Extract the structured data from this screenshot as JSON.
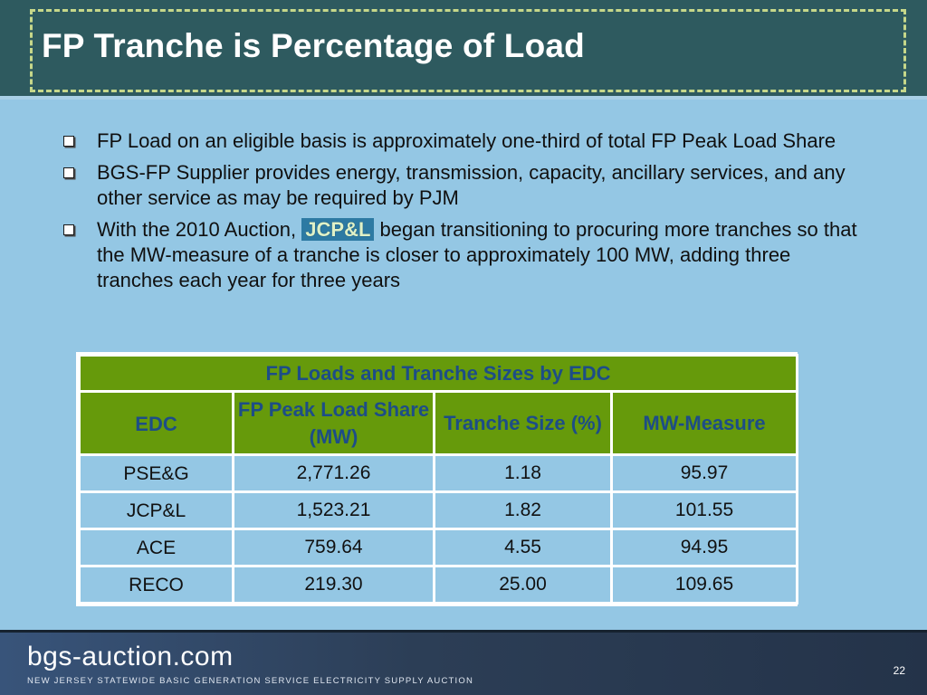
{
  "slide": {
    "title": "FP Tranche is Percentage of Load",
    "bullets": [
      {
        "text": "FP Load on an eligible basis is approximately one-third of total FP Peak Load Share"
      },
      {
        "text": "BGS-FP Supplier provides energy, transmission, capacity, ancillary services, and any other service as may be required by PJM"
      },
      {
        "pre": "With the 2010 Auction, ",
        "highlight": "JCP&L",
        "post": " began transitioning to procuring more tranches so that the MW-measure of a tranche is closer to approximately 100 MW, adding three tranches each year for three years"
      }
    ]
  },
  "table": {
    "title": "FP Loads and Tranche Sizes by EDC",
    "headers": [
      "EDC",
      "FP Peak Load Share (MW)",
      "Tranche Size (%)",
      "MW-Measure"
    ],
    "rows": [
      [
        "PSE&G",
        "2,771.26",
        "1.18",
        "95.97"
      ],
      [
        "JCP&L",
        "1,523.21",
        "1.82",
        "101.55"
      ],
      [
        "ACE",
        "759.64",
        "4.55",
        "94.95"
      ],
      [
        "RECO",
        "219.30",
        "25.00",
        "109.65"
      ]
    ]
  },
  "footer": {
    "brand": "bgs-auction.com",
    "tagline": "New Jersey Statewide Basic Generation Service Electricity Supply Auction",
    "page_number": "22"
  },
  "colors": {
    "background": "#94c7e4",
    "title_band": "#2e5a5f",
    "table_header": "#669a0b",
    "table_header_text": "#1d4d87",
    "footer": "#2b3f57"
  }
}
